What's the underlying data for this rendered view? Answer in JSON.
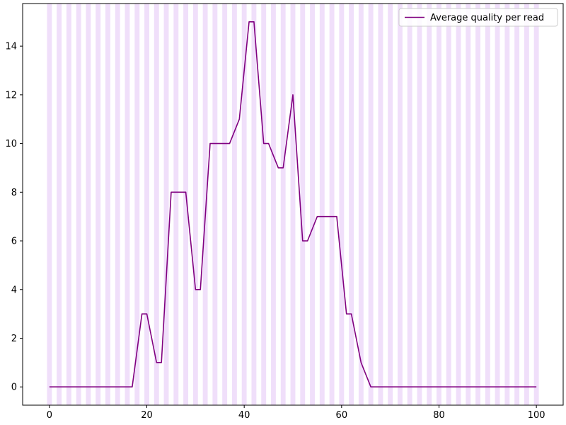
{
  "chart_data": {
    "type": "line",
    "title": "",
    "xlabel": "",
    "ylabel": "",
    "xlim": [
      -5.5,
      105.5
    ],
    "ylim": [
      -0.75,
      15.75
    ],
    "x_ticks": [
      0,
      20,
      40,
      60,
      80,
      100
    ],
    "y_ticks": [
      0,
      2,
      4,
      6,
      8,
      10,
      12,
      14
    ],
    "grid": false,
    "legend_position": "top-right",
    "band_color": "#ddb8f5",
    "line_color": "#800080",
    "series": [
      {
        "name": "Average quality per read",
        "x": [
          0,
          1,
          2,
          3,
          4,
          5,
          6,
          7,
          8,
          9,
          10,
          11,
          12,
          13,
          14,
          15,
          16,
          17,
          18,
          19,
          20,
          21,
          22,
          23,
          24,
          25,
          26,
          27,
          28,
          29,
          30,
          31,
          32,
          33,
          34,
          35,
          36,
          37,
          38,
          39,
          40,
          41,
          42,
          43,
          44,
          45,
          46,
          47,
          48,
          49,
          50,
          51,
          52,
          53,
          54,
          55,
          56,
          57,
          58,
          59,
          60,
          61,
          62,
          63,
          64,
          65,
          66,
          67,
          68,
          69,
          70,
          71,
          72,
          73,
          74,
          75,
          76,
          77,
          78,
          79,
          80,
          81,
          82,
          83,
          84,
          85,
          86,
          87,
          88,
          89,
          90,
          91,
          92,
          93,
          94,
          95,
          96,
          97,
          98,
          99,
          100
        ],
        "values": [
          0,
          0,
          0,
          0,
          0,
          0,
          0,
          0,
          0,
          0,
          0,
          0,
          0,
          0,
          0,
          0,
          0,
          0,
          1.5,
          3,
          3,
          2,
          1,
          1,
          4.5,
          8,
          8,
          8,
          8,
          6,
          4,
          4,
          7,
          10,
          10,
          10,
          10,
          10,
          10.5,
          11,
          13,
          15,
          15,
          12.5,
          10,
          10,
          9.5,
          9,
          9,
          10.5,
          12,
          9,
          6,
          6,
          6.5,
          7,
          7,
          7,
          7,
          7,
          5,
          3,
          3,
          2,
          1,
          0.5,
          0,
          0,
          0,
          0,
          0,
          0,
          0,
          0,
          0,
          0,
          0,
          0,
          0,
          0,
          0,
          0,
          0,
          0,
          0,
          0,
          0,
          0,
          0,
          0,
          0,
          0,
          0,
          0,
          0,
          0,
          0,
          0,
          0,
          0,
          0
        ]
      }
    ]
  }
}
